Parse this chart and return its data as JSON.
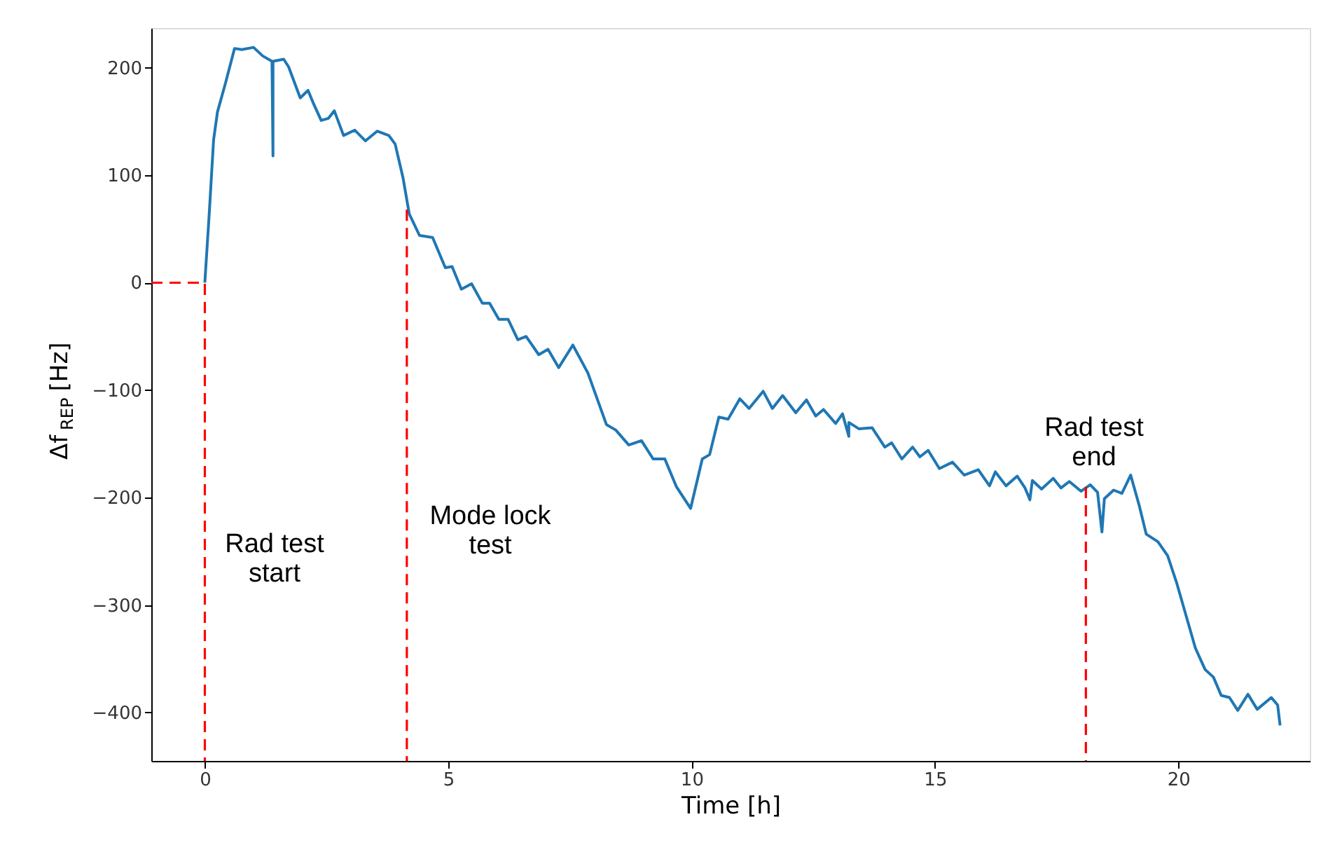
{
  "chart_data": {
    "type": "line",
    "xlabel": "Time [h]",
    "ylabel": "Δf$_{REP}$ [Hz]",
    "xlim": [
      -1.1,
      22.7
    ],
    "ylim": [
      -445,
      237
    ],
    "xticks": [
      0,
      5,
      10,
      15,
      20
    ],
    "yticks": [
      -400,
      -300,
      -200,
      -100,
      0,
      100,
      200
    ],
    "grid": false,
    "series": [
      {
        "color": "#1f77b4",
        "line_style": "solid",
        "x": [
          0,
          0.09,
          0.18,
          0.26,
          0.42,
          0.61,
          0.76,
          1.0,
          1.19,
          1.38,
          1.4,
          1.4,
          1.62,
          1.72,
          1.96,
          2.12,
          2.22,
          2.39,
          2.54,
          2.66,
          2.85,
          3.08,
          3.3,
          3.54,
          3.78,
          3.91,
          4.07,
          4.2,
          4.41,
          4.68,
          4.94,
          5.08,
          5.27,
          5.48,
          5.7,
          5.85,
          6.04,
          6.23,
          6.43,
          6.6,
          6.86,
          7.05,
          7.27,
          7.56,
          7.87,
          8.25,
          8.44,
          8.71,
          8.97,
          9.21,
          9.45,
          9.69,
          9.98,
          10.22,
          10.37,
          10.56,
          10.75,
          10.99,
          11.18,
          11.47,
          11.66,
          11.87,
          12.14,
          12.36,
          12.55,
          12.71,
          12.96,
          13.1,
          13.23,
          13.23,
          13.44,
          13.71,
          13.97,
          14.11,
          14.32,
          14.54,
          14.69,
          14.86,
          15.09,
          15.36,
          15.6,
          15.89,
          16.12,
          16.24,
          16.46,
          16.69,
          16.85,
          16.95,
          17.0,
          17.19,
          17.43,
          17.59,
          17.76,
          18.0,
          18.19,
          18.34,
          18.43,
          18.48,
          18.67,
          18.84,
          19.02,
          19.2,
          19.34,
          19.58,
          19.78,
          19.97,
          20.16,
          20.35,
          20.55,
          20.72,
          20.88,
          21.05,
          21.22,
          21.43,
          21.62,
          21.91,
          22.04,
          22.09
        ],
        "values": [
          0,
          64,
          133,
          159,
          185,
          218,
          217,
          219,
          211,
          206,
          118,
          206,
          208,
          201,
          172,
          179,
          168,
          151,
          153,
          160,
          137,
          142,
          132,
          141,
          137,
          129,
          98,
          64,
          44,
          42,
          14,
          15,
          -6,
          -1,
          -19,
          -19,
          -34,
          -34,
          -53,
          -50,
          -67,
          -62,
          -79,
          -58,
          -84,
          -132,
          -137,
          -151,
          -147,
          -164,
          -164,
          -190,
          -210,
          -164,
          -160,
          -125,
          -127,
          -108,
          -117,
          -101,
          -117,
          -105,
          -121,
          -109,
          -124,
          -118,
          -131,
          -122,
          -143,
          -130,
          -136,
          -135,
          -153,
          -149,
          -164,
          -153,
          -162,
          -156,
          -173,
          -167,
          -179,
          -174,
          -189,
          -176,
          -189,
          -180,
          -191,
          -202,
          -184,
          -192,
          -182,
          -191,
          -185,
          -194,
          -188,
          -195,
          -232,
          -201,
          -193,
          -196,
          -179,
          -208,
          -234,
          -241,
          -254,
          -280,
          -310,
          -340,
          -360,
          -367,
          -384,
          -386,
          -398,
          -383,
          -397,
          -386,
          -393,
          -412
        ]
      },
      {
        "color": "#ff0000",
        "line_style": "dashed",
        "x": [
          -1.1,
          0,
          0
        ],
        "values": [
          0,
          0,
          -445
        ]
      },
      {
        "color": "#ff0000",
        "line_style": "dashed",
        "x": [
          4.15,
          4.15
        ],
        "values": [
          68,
          -445
        ]
      },
      {
        "color": "#ff0000",
        "line_style": "dashed",
        "x": [
          18.1,
          18.1
        ],
        "values": [
          -190,
          -445
        ]
      }
    ],
    "annotations": [
      "Rad test\nstart",
      "Mode lock\ntest",
      "Rad test\nend"
    ]
  }
}
